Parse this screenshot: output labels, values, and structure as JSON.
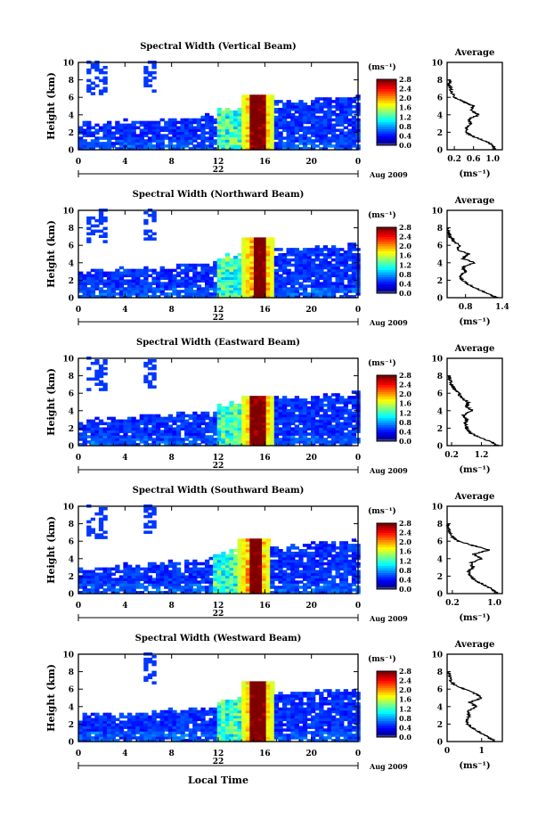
{
  "figure": {
    "xlabel": "Local Time",
    "date_label": "Aug 2009",
    "day_label": "22",
    "colorbar_unit": "(ms⁻¹)",
    "avg_unit": "(ms⁻¹)"
  },
  "chart_data": [
    {
      "type": "heatmap",
      "title": "Spectral Width (Vertical Beam)",
      "ylabel": "Height (km)",
      "xlim": [
        0,
        24
      ],
      "ylim": [
        0,
        10
      ],
      "x_ticks": [
        "0",
        "4",
        "8",
        "12",
        "16",
        "20",
        "0"
      ],
      "y_ticks": [
        "0",
        "2",
        "4",
        "6",
        "8",
        "10"
      ],
      "colorbar_ticks": [
        "0.0",
        "0.4",
        "0.8",
        "1.2",
        "1.6",
        "2.0",
        "2.4",
        "2.8"
      ],
      "colorbar_range": [
        0,
        2.8
      ],
      "average_profile": {
        "title": "Average",
        "xlim": [
          0.05,
          1.2
        ],
        "x_ticks": [
          "0.2",
          "0.6",
          "1.0"
        ],
        "height": [
          0,
          0.5,
          1,
          1.5,
          2,
          2.5,
          3,
          3.5,
          4,
          4.5,
          5,
          5.5,
          6,
          6.5,
          7,
          7.5,
          8
        ],
        "value": [
          1.05,
          1.0,
          0.85,
          0.6,
          0.45,
          0.45,
          0.55,
          0.5,
          0.7,
          0.55,
          0.6,
          0.4,
          0.2,
          0.15,
          0.12,
          0.1,
          0.1
        ]
      }
    },
    {
      "type": "heatmap",
      "title": "Spectral Width (Northward Beam)",
      "ylabel": "Height (km)",
      "xlim": [
        0,
        24
      ],
      "ylim": [
        0,
        10
      ],
      "x_ticks": [
        "0",
        "4",
        "8",
        "12",
        "16",
        "20",
        "0"
      ],
      "y_ticks": [
        "0",
        "2",
        "4",
        "6",
        "8",
        "10"
      ],
      "colorbar_ticks": [
        "0.0",
        "0.4",
        "0.8",
        "1.2",
        "1.6",
        "2.0",
        "2.4",
        "2.8"
      ],
      "colorbar_range": [
        0,
        2.8
      ],
      "average_profile": {
        "title": "Average",
        "xlim": [
          0.5,
          1.4
        ],
        "x_ticks": [
          "0.8",
          "1.4"
        ],
        "height": [
          0,
          0.5,
          1,
          1.5,
          2,
          2.5,
          3,
          3.5,
          4,
          4.5,
          5,
          5.5,
          6,
          6.5,
          7,
          7.5,
          8
        ],
        "value": [
          1.3,
          1.15,
          1.0,
          0.85,
          0.75,
          0.72,
          0.8,
          0.75,
          0.95,
          0.75,
          0.85,
          0.65,
          0.7,
          0.6,
          0.55,
          0.52,
          0.5
        ]
      }
    },
    {
      "type": "heatmap",
      "title": "Spectral Width (Eastward Beam)",
      "ylabel": "Height (km)",
      "xlim": [
        0,
        24
      ],
      "ylim": [
        0,
        10
      ],
      "x_ticks": [
        "0",
        "4",
        "8",
        "12",
        "16",
        "20",
        "0"
      ],
      "y_ticks": [
        "0",
        "2",
        "4",
        "6",
        "8",
        "10"
      ],
      "colorbar_ticks": [
        "0.0",
        "0.4",
        "0.8",
        "1.2",
        "1.6",
        "2.0",
        "2.4",
        "2.8"
      ],
      "colorbar_range": [
        0,
        2.8
      ],
      "average_profile": {
        "title": "Average",
        "xlim": [
          0.05,
          1.9
        ],
        "x_ticks": [
          "0.2",
          "1.2"
        ],
        "height": [
          0,
          0.5,
          1,
          1.5,
          2,
          2.5,
          3,
          3.5,
          4,
          4.5,
          5,
          5.5,
          6,
          6.5,
          7,
          7.5,
          8
        ],
        "value": [
          1.75,
          1.5,
          1.1,
          0.8,
          0.7,
          0.65,
          0.7,
          0.6,
          0.9,
          0.7,
          0.75,
          0.5,
          0.45,
          0.3,
          0.2,
          0.15,
          0.12
        ]
      }
    },
    {
      "type": "heatmap",
      "title": "Spectral Width (Southward Beam)",
      "ylabel": "Height (km)",
      "xlim": [
        0,
        24
      ],
      "ylim": [
        0,
        10
      ],
      "x_ticks": [
        "0",
        "4",
        "8",
        "12",
        "16",
        "20",
        "0"
      ],
      "y_ticks": [
        "0",
        "2",
        "4",
        "6",
        "8",
        "10"
      ],
      "colorbar_ticks": [
        "0.0",
        "0.4",
        "0.8",
        "1.2",
        "1.6",
        "2.0",
        "2.4",
        "2.8"
      ],
      "colorbar_range": [
        0,
        2.8
      ],
      "average_profile": {
        "title": "Average",
        "xlim": [
          0.1,
          1.15
        ],
        "x_ticks": [
          "0.2",
          "1.0"
        ],
        "height": [
          0,
          0.5,
          1,
          1.5,
          2,
          2.5,
          3,
          3.5,
          4,
          4.5,
          5,
          5.5,
          6,
          6.5,
          7,
          7.5,
          8
        ],
        "value": [
          1.05,
          0.95,
          0.8,
          0.65,
          0.55,
          0.5,
          0.6,
          0.55,
          0.75,
          0.6,
          0.9,
          0.6,
          0.3,
          0.2,
          0.15,
          0.12,
          0.1
        ]
      }
    },
    {
      "type": "heatmap",
      "title": "Spectral Width (Westward Beam)",
      "ylabel": "Height (km)",
      "xlim": [
        0,
        24
      ],
      "ylim": [
        0,
        10
      ],
      "x_ticks": [
        "0",
        "4",
        "8",
        "12",
        "16",
        "20",
        "0"
      ],
      "y_ticks": [
        "0",
        "2",
        "4",
        "6",
        "8",
        "10"
      ],
      "colorbar_ticks": [
        "0.0",
        "0.4",
        "0.8",
        "1.2",
        "1.6",
        "2.0",
        "2.4",
        "2.8"
      ],
      "colorbar_range": [
        0,
        2.8
      ],
      "average_profile": {
        "title": "Average",
        "xlim": [
          0,
          1.6
        ],
        "x_ticks": [
          "0",
          "1"
        ],
        "height": [
          0,
          0.5,
          1,
          1.5,
          2,
          2.5,
          3,
          3.5,
          4,
          4.5,
          5,
          5.5,
          6,
          6.5,
          7,
          7.5,
          8
        ],
        "value": [
          1.4,
          1.2,
          0.95,
          0.75,
          0.6,
          0.55,
          0.65,
          0.6,
          0.85,
          0.65,
          1.0,
          0.8,
          0.5,
          0.2,
          0.1,
          0.08,
          0.05
        ]
      }
    }
  ]
}
